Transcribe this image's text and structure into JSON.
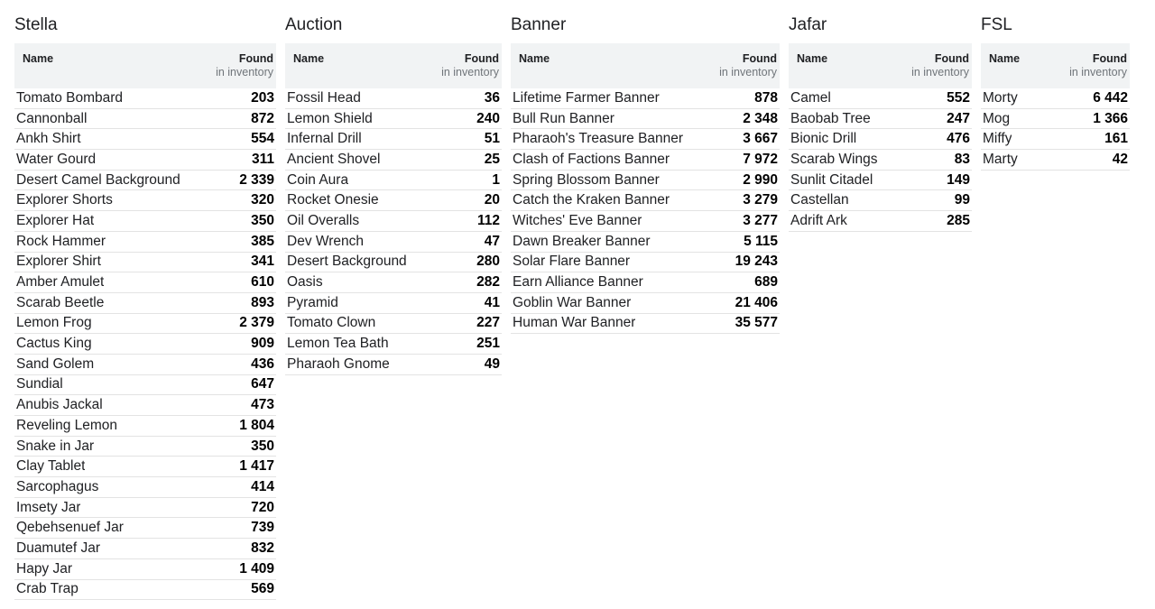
{
  "header_labels": {
    "name": "Name",
    "found": "Found",
    "found_sub": "in inventory"
  },
  "tables": [
    {
      "title": "Stella",
      "rows": [
        {
          "name": "Tomato Bombard",
          "value": "203"
        },
        {
          "name": "Cannonball",
          "value": "872"
        },
        {
          "name": "Ankh Shirt",
          "value": "554"
        },
        {
          "name": "Water Gourd",
          "value": "311"
        },
        {
          "name": "Desert Camel Background",
          "value": "2 339"
        },
        {
          "name": "Explorer Shorts",
          "value": "320"
        },
        {
          "name": "Explorer Hat",
          "value": "350"
        },
        {
          "name": "Rock Hammer",
          "value": "385"
        },
        {
          "name": "Explorer Shirt",
          "value": "341"
        },
        {
          "name": "Amber Amulet",
          "value": "610"
        },
        {
          "name": "Scarab Beetle",
          "value": "893"
        },
        {
          "name": "Lemon Frog",
          "value": "2 379"
        },
        {
          "name": "Cactus King",
          "value": "909"
        },
        {
          "name": "Sand Golem",
          "value": "436"
        },
        {
          "name": "Sundial",
          "value": "647"
        },
        {
          "name": "Anubis Jackal",
          "value": "473"
        },
        {
          "name": "Reveling Lemon",
          "value": "1 804"
        },
        {
          "name": "Snake in Jar",
          "value": "350"
        },
        {
          "name": "Clay Tablet",
          "value": "1 417"
        },
        {
          "name": "Sarcophagus",
          "value": "414"
        },
        {
          "name": "Imsety Jar",
          "value": "720"
        },
        {
          "name": "Qebehsenuef Jar",
          "value": "739"
        },
        {
          "name": "Duamutef Jar",
          "value": "832"
        },
        {
          "name": "Hapy Jar",
          "value": "1 409"
        },
        {
          "name": "Crab Trap",
          "value": "569"
        }
      ]
    },
    {
      "title": "Auction",
      "rows": [
        {
          "name": "Fossil Head",
          "value": "36"
        },
        {
          "name": "Lemon Shield",
          "value": "240"
        },
        {
          "name": "Infernal Drill",
          "value": "51"
        },
        {
          "name": "Ancient Shovel",
          "value": "25"
        },
        {
          "name": "Coin Aura",
          "value": "1"
        },
        {
          "name": "Rocket Onesie",
          "value": "20"
        },
        {
          "name": "Oil Overalls",
          "value": "112"
        },
        {
          "name": "Dev Wrench",
          "value": "47"
        },
        {
          "name": "Desert Background",
          "value": "280"
        },
        {
          "name": "Oasis",
          "value": "282"
        },
        {
          "name": "Pyramid",
          "value": "41"
        },
        {
          "name": "Tomato Clown",
          "value": "227"
        },
        {
          "name": "Lemon Tea Bath",
          "value": "251"
        },
        {
          "name": "Pharaoh Gnome",
          "value": "49"
        }
      ]
    },
    {
      "title": "Banner",
      "rows": [
        {
          "name": "Lifetime Farmer Banner",
          "value": "878"
        },
        {
          "name": "Bull Run Banner",
          "value": "2 348"
        },
        {
          "name": "Pharaoh's Treasure Banner",
          "value": "3 667"
        },
        {
          "name": "Clash of Factions Banner",
          "value": "7 972"
        },
        {
          "name": "Spring Blossom Banner",
          "value": "2 990"
        },
        {
          "name": "Catch the Kraken Banner",
          "value": "3 279"
        },
        {
          "name": "Witches' Eve Banner",
          "value": "3 277"
        },
        {
          "name": "Dawn Breaker Banner",
          "value": "5 115"
        },
        {
          "name": "Solar Flare Banner",
          "value": "19 243"
        },
        {
          "name": "Earn Alliance Banner",
          "value": "689"
        },
        {
          "name": "Goblin War Banner",
          "value": "21 406"
        },
        {
          "name": "Human War Banner",
          "value": "35 577"
        }
      ]
    },
    {
      "title": "Jafar",
      "rows": [
        {
          "name": "Camel",
          "value": "552"
        },
        {
          "name": "Baobab Tree",
          "value": "247"
        },
        {
          "name": "Bionic Drill",
          "value": "476"
        },
        {
          "name": "Scarab Wings",
          "value": "83"
        },
        {
          "name": "Sunlit Citadel",
          "value": "149"
        },
        {
          "name": "Castellan",
          "value": "99"
        },
        {
          "name": "Adrift Ark",
          "value": "285"
        }
      ]
    },
    {
      "title": "FSL",
      "rows": [
        {
          "name": "Morty",
          "value": "6 442"
        },
        {
          "name": "Mog",
          "value": "1 366"
        },
        {
          "name": "Miffy",
          "value": "161"
        },
        {
          "name": "Marty",
          "value": "42"
        }
      ]
    }
  ]
}
